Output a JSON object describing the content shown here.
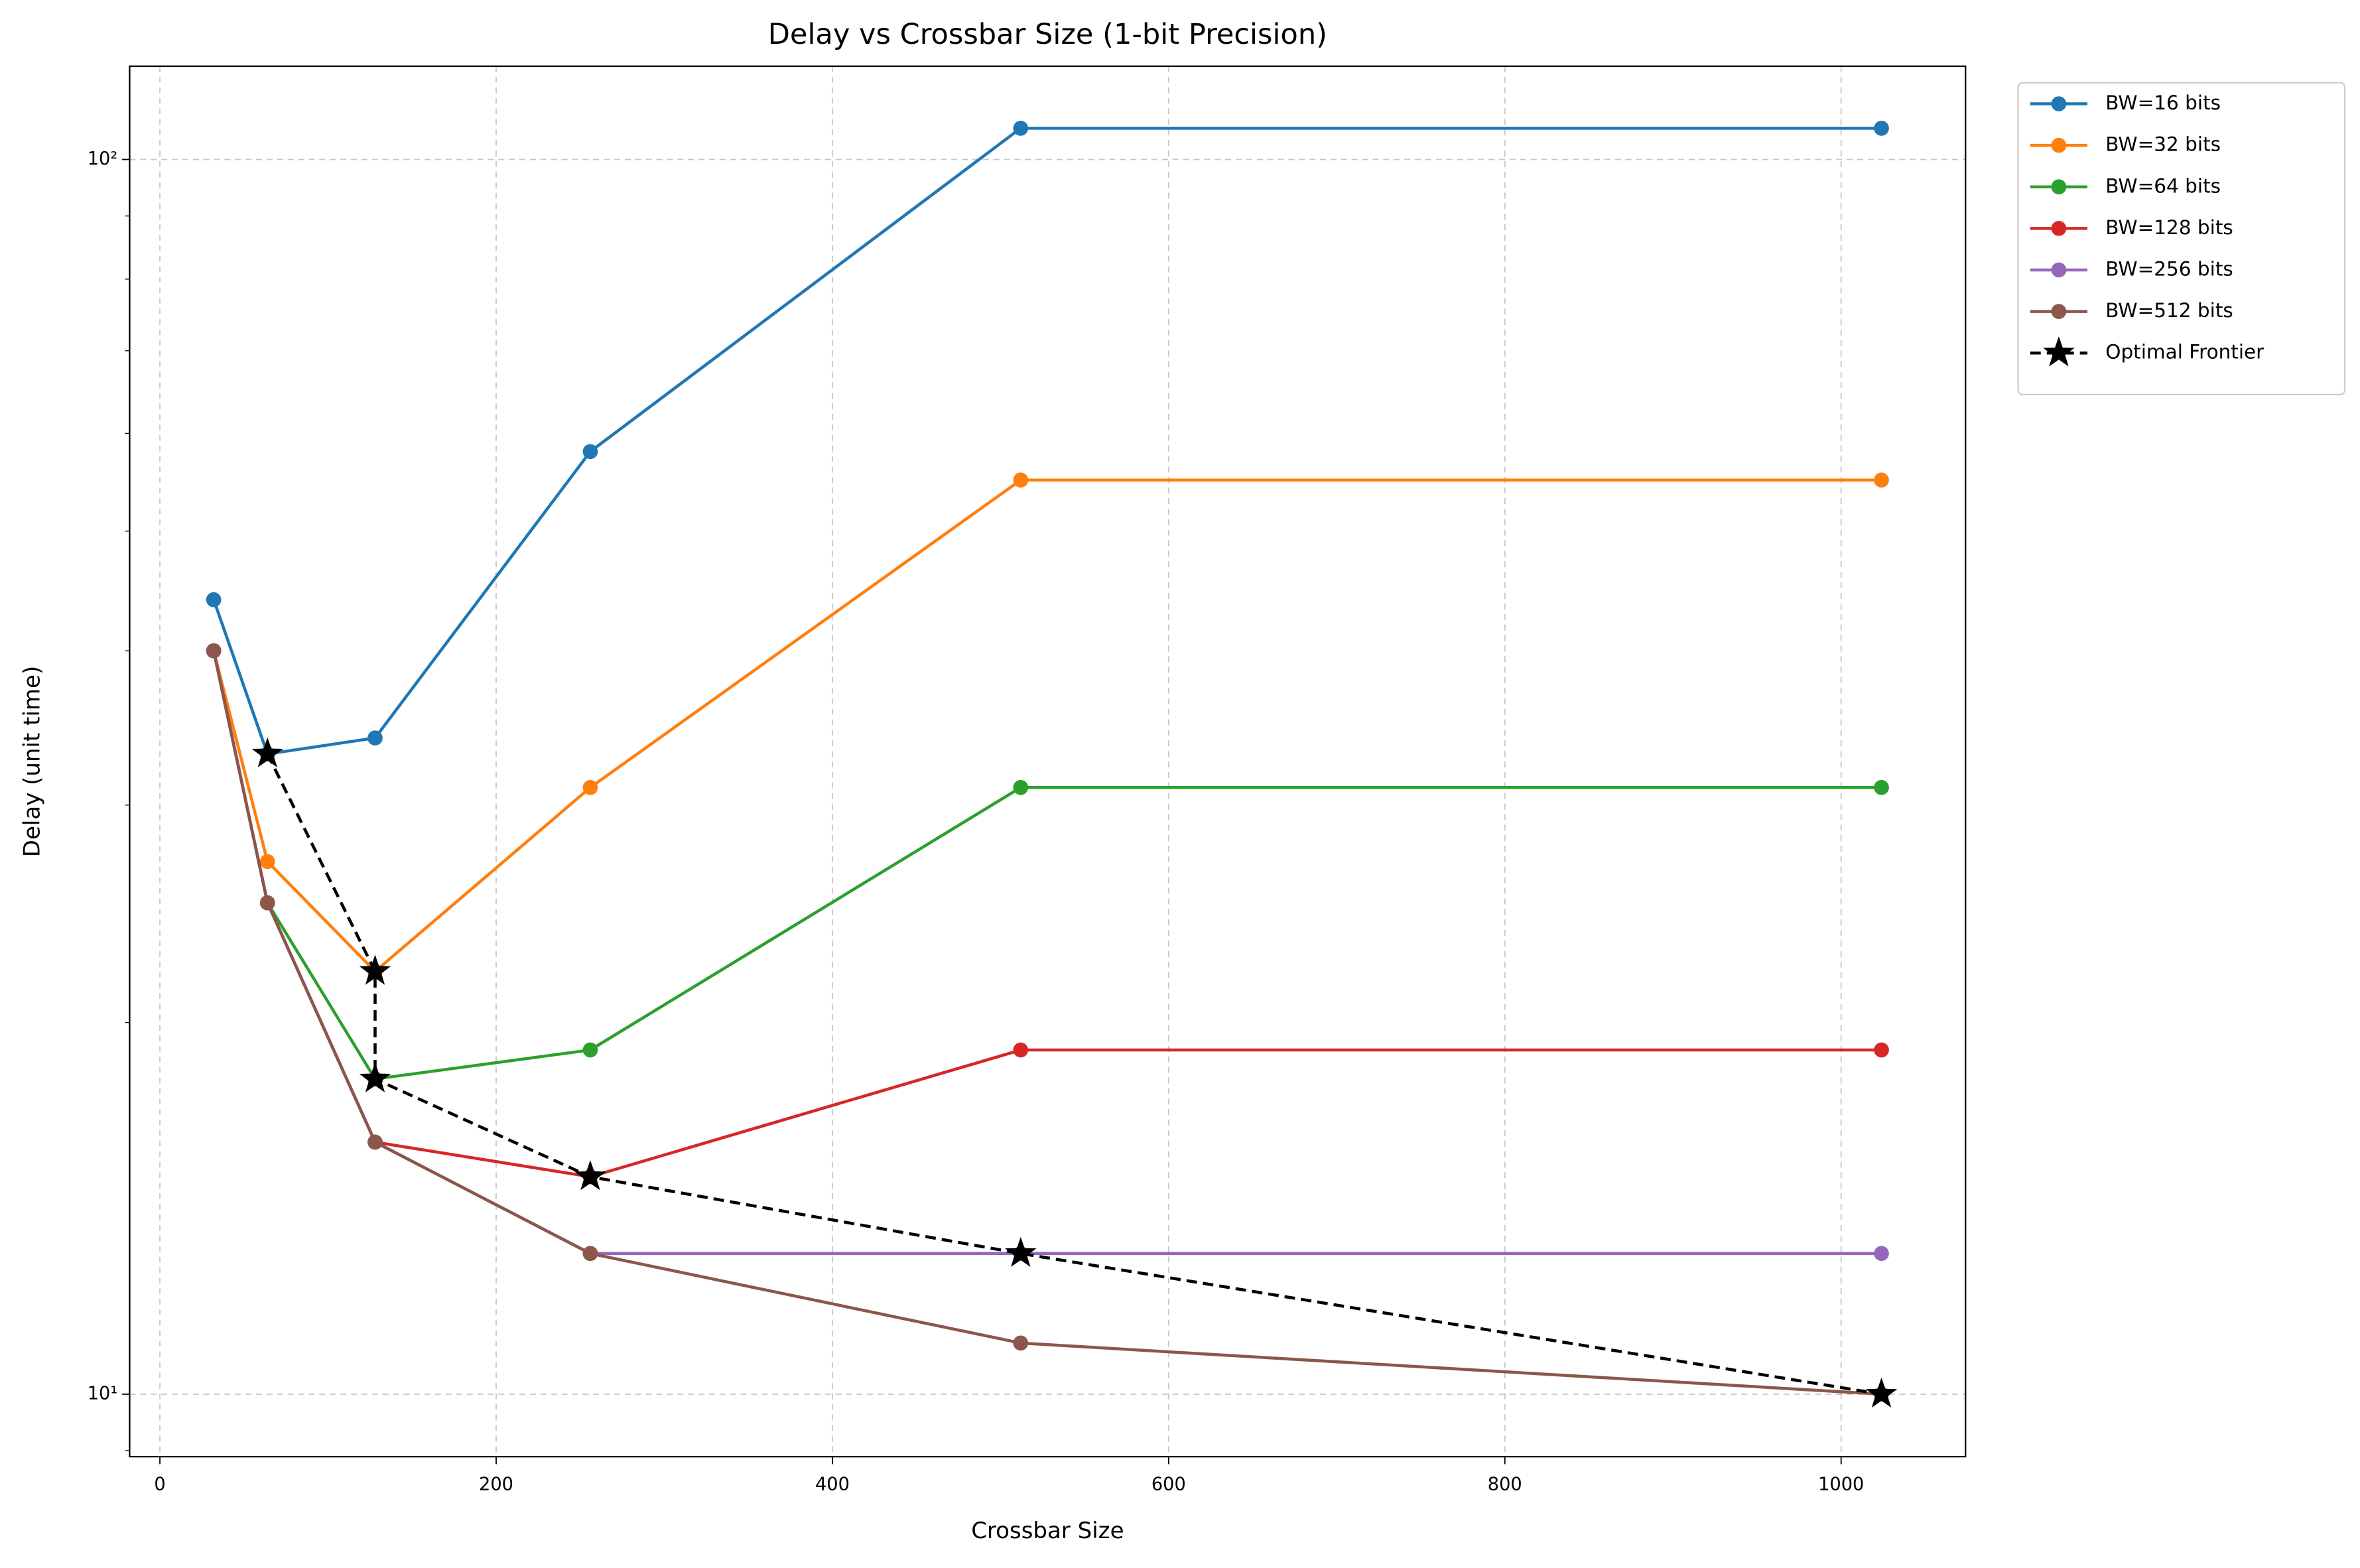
{
  "chart_data": {
    "type": "line",
    "title": "Delay vs Crossbar Size (1-bit Precision)",
    "x_label": "Crossbar Size",
    "y_label": "Delay (unit time)",
    "xlim": [
      -18,
      1074
    ],
    "xticks": [
      0,
      200,
      400,
      600,
      800,
      1000
    ],
    "ylim": [
      8.9,
      119
    ],
    "yscale": "log",
    "yticks": [
      {
        "value": 10,
        "label": "10¹"
      },
      {
        "value": 100,
        "label": "10²"
      }
    ],
    "yminorticks": [
      9,
      20,
      30,
      40,
      50,
      60,
      70,
      80,
      90
    ],
    "grid": true,
    "legend": "outside upper right",
    "series": [
      {
        "name": "BW=16 bits",
        "color": "#1f77b4",
        "marker": "circle",
        "linestyle": "solid",
        "x": [
          32,
          64,
          128,
          256,
          512,
          1024
        ],
        "values": [
          44,
          33,
          34,
          58,
          106,
          106
        ]
      },
      {
        "name": "BW=32 bits",
        "color": "#ff7f0e",
        "marker": "circle",
        "linestyle": "solid",
        "x": [
          32,
          64,
          128,
          256,
          512,
          1024
        ],
        "values": [
          40,
          27,
          22,
          31,
          55,
          55
        ]
      },
      {
        "name": "BW=64 bits",
        "color": "#2ca02c",
        "marker": "circle",
        "linestyle": "solid",
        "x": [
          32,
          64,
          128,
          256,
          512,
          1024
        ],
        "values": [
          40,
          25,
          18,
          19,
          31,
          31
        ]
      },
      {
        "name": "BW=128 bits",
        "color": "#d62728",
        "marker": "circle",
        "linestyle": "solid",
        "x": [
          32,
          64,
          128,
          256,
          512,
          1024
        ],
        "values": [
          40,
          25,
          16,
          15,
          19,
          19
        ]
      },
      {
        "name": "BW=256 bits",
        "color": "#9467bd",
        "marker": "circle",
        "linestyle": "solid",
        "x": [
          32,
          64,
          128,
          256,
          512,
          1024
        ],
        "values": [
          40,
          25,
          16,
          13,
          13,
          13
        ]
      },
      {
        "name": "BW=512 bits",
        "color": "#8c564b",
        "marker": "circle",
        "linestyle": "solid",
        "x": [
          32,
          64,
          128,
          256,
          512,
          1024
        ],
        "values": [
          40,
          25,
          16,
          13,
          11,
          10
        ]
      },
      {
        "name": "Optimal Frontier",
        "color": "#000000",
        "marker": "star",
        "linestyle": "dashed",
        "x": [
          64,
          128,
          128,
          256,
          512,
          1024
        ],
        "values": [
          33,
          22,
          18,
          15,
          13,
          10
        ]
      }
    ]
  }
}
